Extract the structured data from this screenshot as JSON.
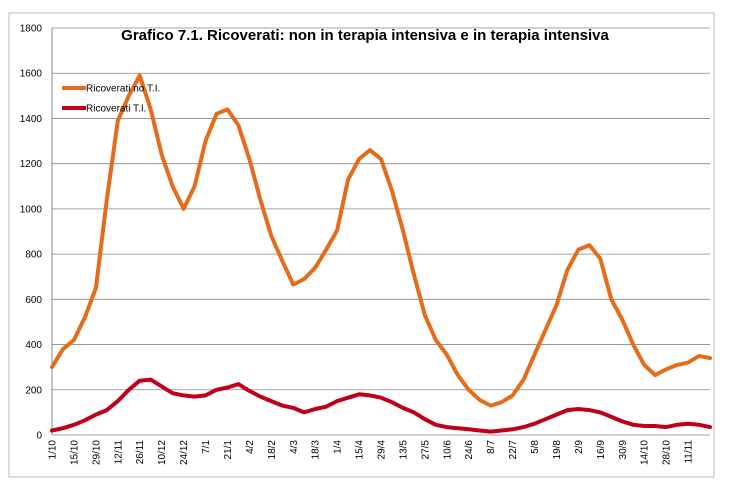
{
  "chart_data": {
    "type": "line",
    "title": "Grafico 7.1. Ricoverati: non in terapia intensiva e in terapia intensiva",
    "categories": [
      "1/10",
      null,
      "15/10",
      null,
      "29/10",
      null,
      "12/11",
      null,
      "26/11",
      null,
      "10/12",
      null,
      "24/12",
      null,
      "7/1",
      null,
      "21/1",
      null,
      "4/2",
      null,
      "18/2",
      null,
      "4/3",
      null,
      "18/3",
      null,
      "1/4",
      null,
      "15/4",
      null,
      "29/4",
      null,
      "13/5",
      null,
      "27/5",
      null,
      "10/6",
      null,
      "24/6",
      null,
      "8/7",
      null,
      "22/7",
      null,
      "5/8",
      null,
      "19/8",
      null,
      "2/9",
      null,
      "16/9",
      null,
      "30/9",
      null,
      "14/10",
      null,
      "28/10",
      null,
      "11/11",
      null,
      null
    ],
    "series": [
      {
        "name": "Ricoverati no T.I.",
        "color": "#e46c1b",
        "values": [
          300,
          380,
          420,
          520,
          650,
          1040,
          1390,
          1500,
          1590,
          1440,
          1240,
          1100,
          1000,
          1100,
          1300,
          1420,
          1440,
          1370,
          1220,
          1040,
          880,
          770,
          665,
          690,
          740,
          820,
          905,
          1130,
          1220,
          1260,
          1220,
          1080,
          905,
          710,
          530,
          420,
          355,
          265,
          200,
          155,
          130,
          145,
          175,
          245,
          355,
          465,
          575,
          730,
          820,
          840,
          780,
          600,
          510,
          400,
          310,
          265,
          290,
          310,
          320,
          350,
          340
        ]
      },
      {
        "name": "Ricoverati T.I.",
        "color": "#c0001a",
        "values": [
          20,
          30,
          45,
          65,
          90,
          110,
          150,
          200,
          240,
          245,
          215,
          185,
          175,
          170,
          175,
          200,
          210,
          225,
          195,
          170,
          150,
          130,
          120,
          100,
          115,
          125,
          150,
          165,
          180,
          175,
          165,
          145,
          120,
          100,
          70,
          45,
          35,
          30,
          25,
          20,
          15,
          20,
          25,
          35,
          50,
          70,
          90,
          110,
          115,
          110,
          100,
          80,
          60,
          45,
          40,
          40,
          35,
          45,
          50,
          45,
          35
        ]
      }
    ],
    "ylim": [
      0,
      1800
    ],
    "yticks": [
      0,
      200,
      400,
      600,
      800,
      1000,
      1200,
      1400,
      1600,
      1800
    ],
    "grid": true,
    "legend": "top-left"
  }
}
